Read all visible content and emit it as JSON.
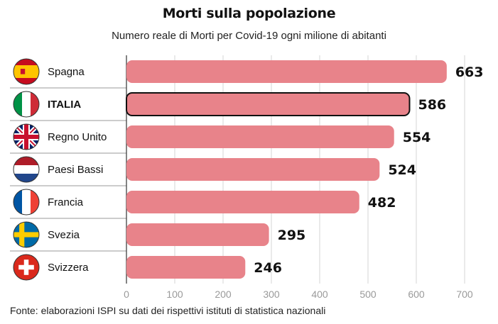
{
  "header": {
    "title": "Morti sulla popolazione",
    "subtitle": "Numero reale di Morti per Covid-19 ogni milione di abitanti"
  },
  "footer": {
    "source": "Fonte: elaborazioni ISPI su dati dei rispettivi istituti di statistica nazionali"
  },
  "chart_data": {
    "type": "bar",
    "orientation": "horizontal",
    "categories": [
      "Spagna",
      "ITALIA",
      "Regno Unito",
      "Paesi Bassi",
      "Francia",
      "Svezia",
      "Svizzera"
    ],
    "values": [
      663,
      586,
      554,
      524,
      482,
      295,
      246
    ],
    "data_labels": [
      "663",
      "586",
      "554",
      "524",
      "482",
      "295",
      "246"
    ],
    "highlight": "ITALIA",
    "xlim": [
      0,
      700
    ],
    "xticks": [
      0,
      100,
      200,
      300,
      400,
      500,
      600,
      700
    ],
    "grid": true,
    "bar_color": "#e8838a",
    "flags": [
      "flag-spain-icon",
      "flag-italy-icon",
      "flag-uk-icon",
      "flag-netherlands-icon",
      "flag-france-icon",
      "flag-sweden-icon",
      "flag-switzerland-icon"
    ]
  }
}
